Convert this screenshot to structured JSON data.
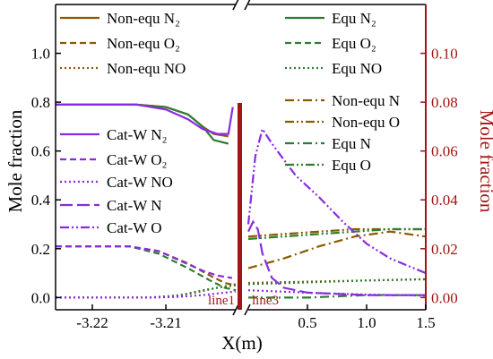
{
  "chart_data": {
    "type": "line",
    "xlabel": "X(m)",
    "ylabel_left": "Mole fraction",
    "ylabel_right": "Mole fraction",
    "left_panel": {
      "xlim": [
        -3.225,
        -3.2005
      ],
      "xticks": [
        -3.22,
        -3.21
      ],
      "xtick_labels": [
        "-3.22",
        "-3.21"
      ]
    },
    "right_panel": {
      "xlim": [
        0,
        1.5
      ],
      "xticks": [
        0.5,
        1.0,
        1.5
      ],
      "xtick_labels": [
        "0.5",
        "1.0",
        "1.5"
      ]
    },
    "y_left": {
      "ylim": [
        -0.05,
        1.2
      ],
      "ticks": [
        0.0,
        0.2,
        0.4,
        0.6,
        0.8,
        1.0
      ],
      "tick_labels": [
        "0.0",
        "0.2",
        "0.4",
        "0.6",
        "0.8",
        "1.0"
      ]
    },
    "y_right": {
      "ylim": [
        -0.005,
        0.12
      ],
      "ticks": [
        0.0,
        0.02,
        0.04,
        0.06,
        0.08,
        0.1
      ],
      "tick_labels": [
        "0.00",
        "0.02",
        "0.04",
        "0.06",
        "0.08",
        "0.10"
      ]
    },
    "annotations": [
      "line1",
      "line3"
    ],
    "series": [
      {
        "name": "Non-equ N₂",
        "axis": "left",
        "color": "#8b5a00",
        "dash": "solid",
        "left": [
          [
            -3.225,
            0.79
          ],
          [
            -3.214,
            0.79
          ],
          [
            -3.21,
            0.78
          ],
          [
            -3.207,
            0.75
          ],
          [
            -3.205,
            0.7
          ],
          [
            -3.2035,
            0.67
          ],
          [
            -3.2015,
            0.66
          ]
        ],
        "right": []
      },
      {
        "name": "Non-equ O₂",
        "axis": "left",
        "color": "#8b5a00",
        "dash": "dash",
        "left": [
          [
            -3.225,
            0.21
          ],
          [
            -3.215,
            0.21
          ],
          [
            -3.211,
            0.19
          ],
          [
            -3.207,
            0.14
          ],
          [
            -3.204,
            0.09
          ],
          [
            -3.202,
            0.06
          ],
          [
            -3.2005,
            0.05
          ]
        ],
        "right": []
      },
      {
        "name": "Non-equ NO",
        "axis": "left",
        "color": "#8b5a00",
        "dash": "dot",
        "left": [
          [
            -3.225,
            0.0
          ],
          [
            -3.213,
            0.0
          ],
          [
            -3.209,
            0.005
          ],
          [
            -3.206,
            0.02
          ],
          [
            -3.203,
            0.04
          ],
          [
            -3.2005,
            0.055
          ]
        ],
        "right": [
          [
            0.0,
            0.06
          ],
          [
            0.5,
            0.065
          ],
          [
            1.0,
            0.07
          ],
          [
            1.5,
            0.075
          ]
        ]
      },
      {
        "name": "Equ N₂",
        "axis": "left",
        "color": "#2e7d32",
        "dash": "solid",
        "left": [
          [
            -3.225,
            0.79
          ],
          [
            -3.214,
            0.79
          ],
          [
            -3.21,
            0.78
          ],
          [
            -3.207,
            0.75
          ],
          [
            -3.205,
            0.7
          ],
          [
            -3.2035,
            0.645
          ],
          [
            -3.2015,
            0.63
          ]
        ],
        "right": []
      },
      {
        "name": "Equ O₂",
        "axis": "left",
        "color": "#2e7d32",
        "dash": "dash",
        "left": [
          [
            -3.225,
            0.21
          ],
          [
            -3.215,
            0.21
          ],
          [
            -3.211,
            0.18
          ],
          [
            -3.207,
            0.12
          ],
          [
            -3.204,
            0.07
          ],
          [
            -3.202,
            0.04
          ],
          [
            -3.2005,
            0.03
          ]
        ],
        "right": []
      },
      {
        "name": "Equ NO",
        "axis": "left",
        "color": "#2e7d32",
        "dash": "dot",
        "left": [
          [
            -3.225,
            0.0
          ],
          [
            -3.212,
            0.0
          ],
          [
            -3.208,
            0.01
          ],
          [
            -3.205,
            0.03
          ],
          [
            -3.202,
            0.045
          ],
          [
            -3.2005,
            0.05
          ]
        ],
        "right": [
          [
            0.0,
            0.055
          ],
          [
            0.5,
            0.062
          ],
          [
            1.0,
            0.07
          ],
          [
            1.5,
            0.075
          ]
        ]
      },
      {
        "name": "Non-equ N",
        "axis": "right",
        "color": "#8b5a00",
        "dash": "dashdot",
        "left": [],
        "right": [
          [
            0.0,
            0.012
          ],
          [
            0.3,
            0.016
          ],
          [
            0.6,
            0.021
          ],
          [
            0.9,
            0.025
          ],
          [
            1.2,
            0.027
          ],
          [
            1.5,
            0.025
          ]
        ]
      },
      {
        "name": "Non-equ O",
        "axis": "right",
        "color": "#8b5a00",
        "dash": "dashdotdot",
        "left": [],
        "right": [
          [
            0.0,
            0.025
          ],
          [
            0.3,
            0.026
          ],
          [
            0.6,
            0.027
          ],
          [
            0.9,
            0.028
          ],
          [
            1.2,
            0.028
          ],
          [
            1.5,
            0.028
          ]
        ]
      },
      {
        "name": "Equ N",
        "axis": "right",
        "color": "#2e7d32",
        "dash": "dashdot",
        "left": [],
        "right": [
          [
            0.0,
            0.0
          ],
          [
            0.5,
            0.0
          ],
          [
            1.0,
            0.001
          ],
          [
            1.5,
            0.001
          ]
        ]
      },
      {
        "name": "Equ O",
        "axis": "right",
        "color": "#2e7d32",
        "dash": "dashdotdot",
        "left": [],
        "right": [
          [
            0.0,
            0.024
          ],
          [
            0.3,
            0.025
          ],
          [
            0.6,
            0.026
          ],
          [
            0.9,
            0.027
          ],
          [
            1.2,
            0.028
          ],
          [
            1.5,
            0.028
          ]
        ]
      },
      {
        "name": "Cat-W N₂",
        "axis": "left",
        "color": "#8a2be2",
        "dash": "solid",
        "left": [
          [
            -3.225,
            0.79
          ],
          [
            -3.214,
            0.79
          ],
          [
            -3.21,
            0.77
          ],
          [
            -3.207,
            0.73
          ],
          [
            -3.205,
            0.69
          ],
          [
            -3.203,
            0.67
          ],
          [
            -3.2015,
            0.67
          ],
          [
            -3.2009,
            0.78
          ]
        ],
        "right": []
      },
      {
        "name": "Cat-W O₂",
        "axis": "left",
        "color": "#8a2be2",
        "dash": "dash",
        "left": [
          [
            -3.225,
            0.21
          ],
          [
            -3.215,
            0.21
          ],
          [
            -3.211,
            0.19
          ],
          [
            -3.208,
            0.15
          ],
          [
            -3.205,
            0.11
          ],
          [
            -3.203,
            0.09
          ],
          [
            -3.201,
            0.08
          ]
        ],
        "right": []
      },
      {
        "name": "Cat-W NO",
        "axis": "left",
        "color": "#8a2be2",
        "dash": "dot",
        "left": [
          [
            -3.225,
            0.0
          ],
          [
            -3.212,
            0.0
          ],
          [
            -3.208,
            0.003
          ],
          [
            -3.205,
            0.01
          ],
          [
            -3.202,
            0.02
          ],
          [
            -3.2005,
            0.025
          ]
        ],
        "right": [
          [
            0.0,
            0.03
          ],
          [
            0.5,
            0.02
          ],
          [
            1.0,
            0.012
          ],
          [
            1.5,
            0.008
          ]
        ]
      },
      {
        "name": "Cat-W N",
        "axis": "right",
        "color": "#8a2be2",
        "dash": "dashlong",
        "left": [],
        "right": [
          [
            0.0,
            0.027
          ],
          [
            0.04,
            0.031
          ],
          [
            0.08,
            0.028
          ],
          [
            0.12,
            0.018
          ],
          [
            0.2,
            0.008
          ],
          [
            0.3,
            0.004
          ],
          [
            0.5,
            0.002
          ],
          [
            1.0,
            0.001
          ],
          [
            1.5,
            0.001
          ]
        ]
      },
      {
        "name": "Cat-W O",
        "axis": "right",
        "color": "#8a2be2",
        "dash": "dashdotdot",
        "left": [],
        "right": [
          [
            0.0,
            0.03
          ],
          [
            0.06,
            0.058
          ],
          [
            0.12,
            0.069
          ],
          [
            0.2,
            0.063
          ],
          [
            0.4,
            0.05
          ],
          [
            0.6,
            0.041
          ],
          [
            0.8,
            0.031
          ],
          [
            1.0,
            0.022
          ],
          [
            1.2,
            0.016
          ],
          [
            1.5,
            0.01
          ]
        ]
      }
    ]
  }
}
